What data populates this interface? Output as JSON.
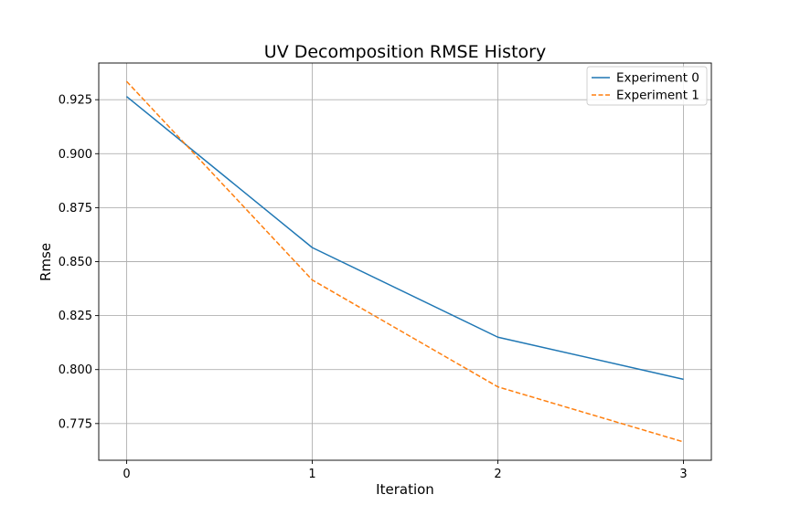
{
  "chart_data": {
    "type": "line",
    "title": "UV Decomposition RMSE History",
    "xlabel": "Iteration",
    "ylabel": "Rmse",
    "x": [
      0,
      1,
      2,
      3
    ],
    "xlim": [
      -0.15,
      3.15
    ],
    "ylim": [
      0.758,
      0.942
    ],
    "xticks": [
      0,
      1,
      2,
      3
    ],
    "xtick_labels": [
      "0",
      "1",
      "2",
      "3"
    ],
    "yticks": [
      0.775,
      0.8,
      0.825,
      0.85,
      0.875,
      0.9,
      0.925
    ],
    "ytick_labels": [
      "0.775",
      "0.800",
      "0.825",
      "0.850",
      "0.875",
      "0.900",
      "0.925"
    ],
    "grid": true,
    "legend_position": "top-right",
    "series": [
      {
        "name": "Experiment 0",
        "values": [
          0.9265,
          0.8565,
          0.815,
          0.7955
        ],
        "color": "#1f77b4",
        "style": "solid"
      },
      {
        "name": "Experiment 1",
        "values": [
          0.9335,
          0.8415,
          0.792,
          0.7665
        ],
        "color": "#ff7f0e",
        "style": "dashed"
      }
    ]
  }
}
